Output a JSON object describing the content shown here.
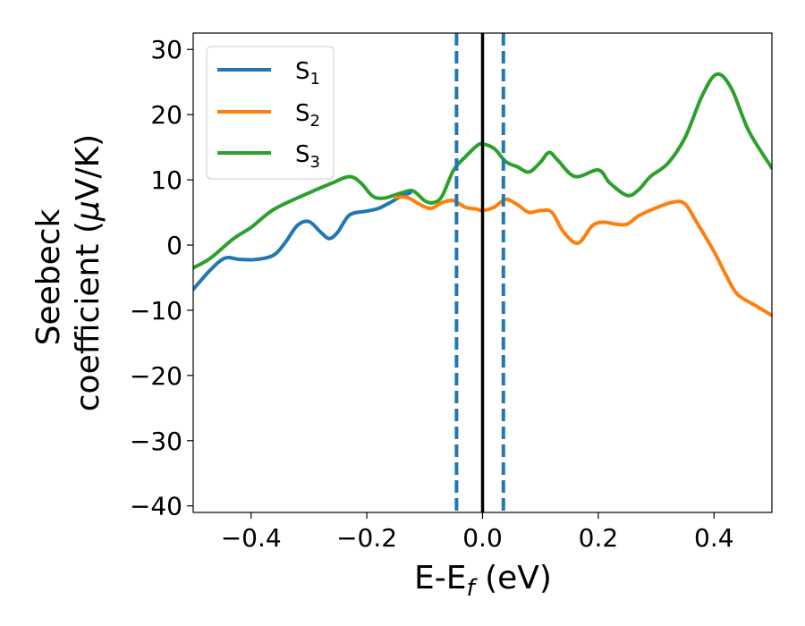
{
  "chart_data": {
    "type": "line",
    "xlabel": "E-E",
    "xlabel_sub": "f",
    "xlabel_unit": " (eV)",
    "ylabel_line1": "Seebeck",
    "ylabel_line2": "coefficient  (",
    "ylabel_mu": "μ",
    "ylabel_unit": "V/K)",
    "xlim": [
      -0.5,
      0.5
    ],
    "ylim": [
      -41,
      32.5
    ],
    "xticks": [
      -0.4,
      -0.2,
      0.0,
      0.2,
      0.4
    ],
    "xtick_labels": [
      "−0.4",
      "−0.2",
      "0.0",
      "0.2",
      "0.4"
    ],
    "yticks": [
      30,
      20,
      10,
      0,
      -10,
      -20,
      -30,
      -40
    ],
    "ytick_labels": [
      "30",
      "20",
      "10",
      "0",
      "−10",
      "−20",
      "−30",
      "−40"
    ],
    "grid": false,
    "legend_position": "top-left",
    "vertical_lines": [
      {
        "x": -0.045,
        "style": "dashed",
        "color": "#1f77b4"
      },
      {
        "x": 0.0,
        "style": "solid",
        "color": "#000000"
      },
      {
        "x": 0.036,
        "style": "dashed",
        "color": "#1f77b4"
      }
    ],
    "series": [
      {
        "name": "S",
        "name_sub": "1",
        "color": "#1f77b4",
        "x": [
          -0.5,
          -0.47,
          -0.445,
          -0.42,
          -0.39,
          -0.36,
          -0.34,
          -0.32,
          -0.3,
          -0.28,
          -0.265,
          -0.25,
          -0.23,
          -0.2,
          -0.18,
          -0.16,
          -0.14,
          -0.125
        ],
        "y": [
          -6.8,
          -3.8,
          -2.0,
          -2.2,
          -2.2,
          -1.5,
          0.5,
          3.0,
          3.6,
          2.0,
          1.0,
          2.0,
          4.6,
          5.2,
          5.6,
          6.5,
          7.5,
          8.0
        ]
      },
      {
        "name": "S",
        "name_sub": "2",
        "color": "#ff7f0e",
        "x": [
          -0.15,
          -0.13,
          -0.11,
          -0.09,
          -0.07,
          -0.05,
          -0.03,
          -0.01,
          0.0,
          0.02,
          0.04,
          0.06,
          0.08,
          0.1,
          0.12,
          0.14,
          0.165,
          0.19,
          0.21,
          0.23,
          0.25,
          0.27,
          0.3,
          0.33,
          0.35,
          0.37,
          0.4,
          0.42,
          0.44,
          0.47,
          0.5
        ],
        "y": [
          7.3,
          7.3,
          6.3,
          5.6,
          6.5,
          6.8,
          5.8,
          5.5,
          5.3,
          5.8,
          7.0,
          6.2,
          5.0,
          5.3,
          5.0,
          2.0,
          0.3,
          3.0,
          3.5,
          3.2,
          3.2,
          4.5,
          5.7,
          6.6,
          6.3,
          3.5,
          -1.0,
          -4.5,
          -7.5,
          -9.2,
          -10.8
        ]
      },
      {
        "name": "S",
        "name_sub": "3",
        "color": "#2ca02c",
        "x": [
          -0.5,
          -0.47,
          -0.43,
          -0.4,
          -0.36,
          -0.3,
          -0.26,
          -0.23,
          -0.21,
          -0.19,
          -0.17,
          -0.14,
          -0.12,
          -0.1,
          -0.085,
          -0.07,
          -0.05,
          -0.03,
          -0.01,
          0.0,
          0.02,
          0.04,
          0.06,
          0.08,
          0.1,
          0.115,
          0.13,
          0.16,
          0.2,
          0.22,
          0.25,
          0.27,
          0.29,
          0.32,
          0.35,
          0.38,
          0.405,
          0.43,
          0.46,
          0.5
        ],
        "y": [
          -3.5,
          -2.0,
          1.0,
          2.7,
          5.5,
          8.0,
          9.5,
          10.5,
          9.5,
          7.5,
          7.2,
          8.0,
          8.3,
          6.8,
          6.5,
          7.5,
          11.5,
          13.5,
          15.2,
          15.5,
          14.8,
          12.8,
          12.0,
          11.2,
          12.7,
          14.2,
          13.0,
          10.5,
          11.5,
          9.5,
          7.6,
          8.5,
          10.5,
          12.5,
          16.5,
          23.0,
          26.2,
          24.0,
          17.5,
          11.8
        ]
      }
    ]
  }
}
